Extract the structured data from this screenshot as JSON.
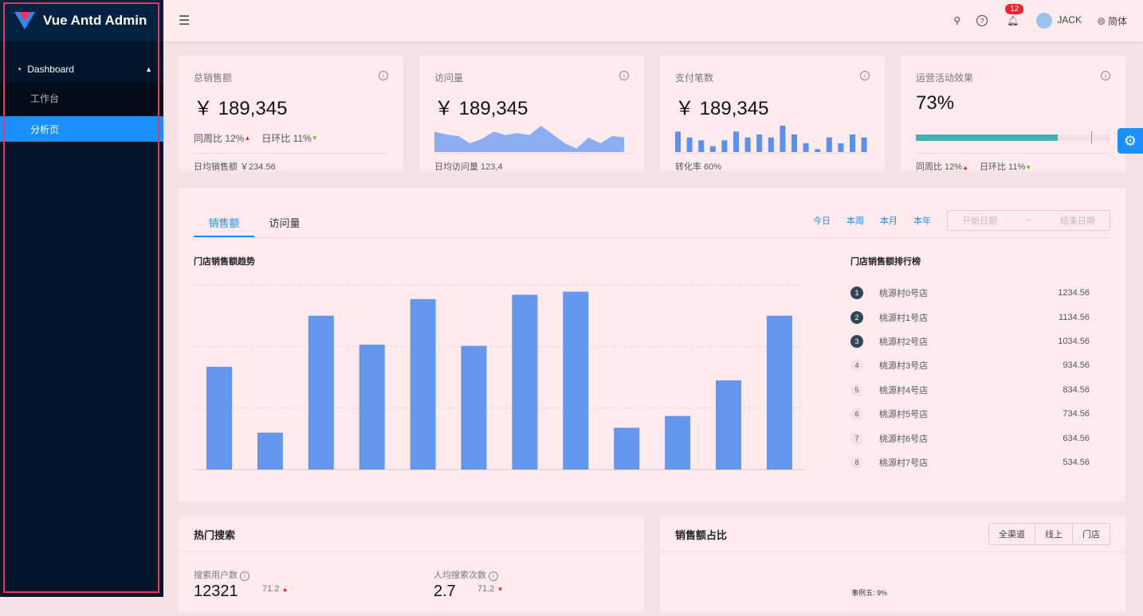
{
  "sidebar": {
    "logo": "Vue Antd Admin",
    "menu": {
      "label": "Dashboard",
      "items": [
        {
          "label": "工作台"
        },
        {
          "label": "分析页",
          "active": true
        }
      ]
    }
  },
  "header": {
    "notification_count": "12",
    "user": "JACK",
    "language": "简体"
  },
  "stats": [
    {
      "title": "总销售额",
      "value": "￥ 189,345",
      "week_label": "同周比 12%",
      "day_label": "日环比 11%",
      "footer": "日均销售额 ￥234.56"
    },
    {
      "title": "访问量",
      "value": "￥ 189,345",
      "footer": "日均访问量 123,4",
      "area": [
        7,
        6,
        5.5,
        3,
        4.5,
        7,
        5.8,
        6.5,
        5.8,
        9,
        6,
        3,
        1.2,
        5,
        3,
        5.5,
        5
      ]
    },
    {
      "title": "支付笔数",
      "value": "￥ 189,345",
      "footer": "转化率 60%",
      "bars": [
        7,
        5,
        4,
        2,
        4,
        7,
        5,
        6,
        5,
        9,
        6,
        3,
        1,
        5,
        3,
        6,
        5
      ]
    },
    {
      "title": "运营活动效果",
      "value": "73%",
      "progress": 0.73,
      "target": 0.9,
      "week_label": "同周比 12%",
      "day_label": "日环比 11%"
    }
  ],
  "sales": {
    "tabs": [
      "销售额",
      "访问量"
    ],
    "ranges": [
      "今日",
      "本周",
      "本月",
      "本年"
    ],
    "start_placeholder": "开始日期",
    "end_placeholder": "结束日期",
    "separator": "~",
    "chart_title": "门店销售额趋势",
    "ranking_title": "门店销售额排行榜",
    "chart_data": {
      "type": "bar",
      "values": [
        167,
        60,
        250,
        203,
        277,
        201,
        284,
        289,
        68,
        87,
        145,
        250
      ],
      "ylim": [
        0,
        300
      ],
      "grid": true,
      "color": "#6396ec"
    },
    "ranking": [
      {
        "rank": "1",
        "name": "桃源村0号店",
        "value": "1234.56"
      },
      {
        "rank": "2",
        "name": "桃源村1号店",
        "value": "1134.56"
      },
      {
        "rank": "3",
        "name": "桃源村2号店",
        "value": "1034.56"
      },
      {
        "rank": "4",
        "name": "桃源村3号店",
        "value": "934.56"
      },
      {
        "rank": "5",
        "name": "桃源村4号店",
        "value": "834.56"
      },
      {
        "rank": "6",
        "name": "桃源村5号店",
        "value": "734.56"
      },
      {
        "rank": "7",
        "name": "桃源村6号店",
        "value": "634.56"
      },
      {
        "rank": "8",
        "name": "桃源村7号店",
        "value": "534.56"
      }
    ]
  },
  "hot_search": {
    "title": "热门搜索",
    "users_label": "搜索用户数",
    "users_value": "12321",
    "users_change": "71.2",
    "avg_label": "人均搜索次数",
    "avg_value": "2.7",
    "avg_change": "71.2"
  },
  "proportion": {
    "title": "销售额占比",
    "buttons": [
      "全渠道",
      "线上",
      "门店"
    ],
    "pie_label": "事例五: 9%"
  },
  "colors": {
    "primary": "#1890ff",
    "sidebar": "#001529",
    "progress": "#3fb1b0",
    "up": "#f5222d",
    "down": "#52c41a"
  }
}
